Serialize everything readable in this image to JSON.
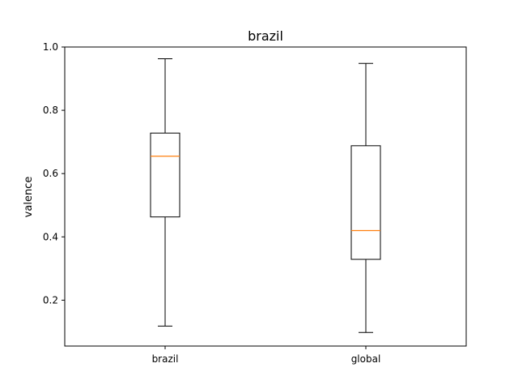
{
  "chart_data": {
    "type": "box",
    "title": "brazil",
    "xlabel": "",
    "ylabel": "valence",
    "ylim": [
      0.055,
      1.0
    ],
    "yticks": [
      "0.2",
      "0.4",
      "0.6",
      "0.8",
      "1.0"
    ],
    "grid": false,
    "categories": [
      "brazil",
      "global"
    ],
    "boxes": [
      {
        "label": "brazil",
        "whisker_low": 0.118,
        "q1": 0.463,
        "median": 0.655,
        "q3": 0.728,
        "whisker_high": 0.963
      },
      {
        "label": "global",
        "whisker_low": 0.098,
        "q1": 0.329,
        "median": 0.42,
        "q3": 0.688,
        "whisker_high": 0.948
      }
    ],
    "colors": {
      "box": "#000000",
      "median": "#ff7f0e"
    }
  }
}
